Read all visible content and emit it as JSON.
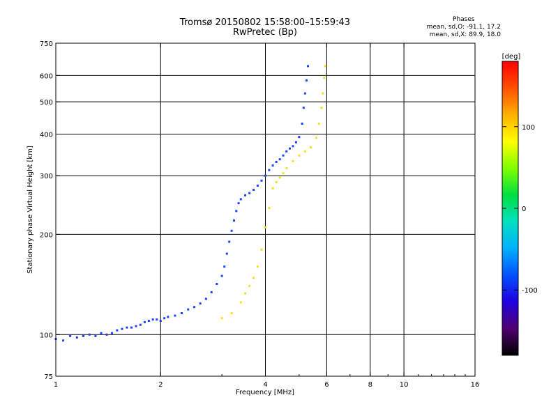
{
  "header": {
    "title": "Tromsø 20150802 15:58:00–15:59:43",
    "subtitle": "RwPretec (Bp)",
    "stats_title": "Phases",
    "stats_o": "mean, sd,O: -91.1, 17.2",
    "stats_x": "mean, sd,X:  89.9, 18.0"
  },
  "chart_data": {
    "type": "scatter",
    "title": "Tromsø 20150802 15:58:00–15:59:43",
    "subtitle": "RwPretec (Bp)",
    "xlabel": "Frequency [MHz]",
    "ylabel": "Stationary phase Virtual Height [km]",
    "xscale": "log",
    "yscale": "log",
    "xlim": [
      1,
      16
    ],
    "ylim": [
      75,
      750
    ],
    "xticks": [
      1,
      2,
      4,
      6,
      8,
      10,
      16
    ],
    "xtick_labels": [
      "1",
      "2",
      "4",
      "6",
      "8",
      "10",
      "16"
    ],
    "xgrid": [
      1,
      2,
      4,
      6,
      8,
      10
    ],
    "yticks": [
      75,
      100,
      200,
      300,
      400,
      500,
      600,
      750
    ],
    "ytick_labels": [
      "75",
      "100",
      "200",
      "300",
      "400",
      "500",
      "600",
      "750"
    ],
    "grid": true,
    "colorbar": {
      "label": "[deg]",
      "range": [
        -180,
        180
      ],
      "ticks": [
        -100,
        0,
        100
      ],
      "tick_labels": [
        "-100",
        "0",
        "100"
      ]
    },
    "series": [
      {
        "mode": "O",
        "phase_color": "#1e40ff",
        "points": [
          [
            1.0,
            97
          ],
          [
            1.05,
            96
          ],
          [
            1.1,
            99
          ],
          [
            1.15,
            98
          ],
          [
            1.2,
            99
          ],
          [
            1.25,
            100
          ],
          [
            1.3,
            99
          ],
          [
            1.35,
            101
          ],
          [
            1.4,
            100
          ],
          [
            1.45,
            101
          ],
          [
            1.5,
            103
          ],
          [
            1.55,
            104
          ],
          [
            1.6,
            105
          ],
          [
            1.65,
            105
          ],
          [
            1.7,
            106
          ],
          [
            1.75,
            107
          ],
          [
            1.8,
            109
          ],
          [
            1.85,
            110
          ],
          [
            1.9,
            111
          ],
          [
            1.95,
            111
          ],
          [
            2.0,
            110
          ],
          [
            2.05,
            112
          ],
          [
            2.1,
            113
          ],
          [
            2.2,
            114
          ],
          [
            2.3,
            116
          ],
          [
            2.4,
            119
          ],
          [
            2.5,
            121
          ],
          [
            2.6,
            124
          ],
          [
            2.7,
            128
          ],
          [
            2.8,
            134
          ],
          [
            2.9,
            142
          ],
          [
            3.0,
            150
          ],
          [
            3.05,
            160
          ],
          [
            3.1,
            175
          ],
          [
            3.15,
            190
          ],
          [
            3.2,
            205
          ],
          [
            3.25,
            220
          ],
          [
            3.3,
            235
          ],
          [
            3.35,
            248
          ],
          [
            3.4,
            255
          ],
          [
            3.5,
            262
          ],
          [
            3.6,
            266
          ],
          [
            3.7,
            272
          ],
          [
            3.8,
            280
          ],
          [
            3.9,
            290
          ],
          [
            4.0,
            300
          ],
          [
            4.1,
            312
          ],
          [
            4.2,
            322
          ],
          [
            4.3,
            330
          ],
          [
            4.4,
            336
          ],
          [
            4.5,
            345
          ],
          [
            4.6,
            355
          ],
          [
            4.7,
            362
          ],
          [
            4.8,
            368
          ],
          [
            4.9,
            378
          ],
          [
            5.0,
            392
          ],
          [
            5.1,
            430
          ],
          [
            5.15,
            480
          ],
          [
            5.2,
            530
          ],
          [
            5.25,
            580
          ],
          [
            5.3,
            640
          ]
        ]
      },
      {
        "mode": "X",
        "phase_color": "#f0e020",
        "points": [
          [
            3.0,
            112
          ],
          [
            3.2,
            116
          ],
          [
            3.4,
            125
          ],
          [
            3.5,
            133
          ],
          [
            3.6,
            140
          ],
          [
            3.7,
            148
          ],
          [
            3.8,
            160
          ],
          [
            3.9,
            180
          ],
          [
            4.0,
            210
          ],
          [
            4.1,
            240
          ],
          [
            4.2,
            275
          ],
          [
            4.3,
            287
          ],
          [
            4.4,
            296
          ],
          [
            4.5,
            305
          ],
          [
            4.6,
            316
          ],
          [
            4.8,
            332
          ],
          [
            5.0,
            345
          ],
          [
            5.2,
            355
          ],
          [
            5.4,
            365
          ],
          [
            5.6,
            390
          ],
          [
            5.7,
            430
          ],
          [
            5.8,
            480
          ],
          [
            5.85,
            530
          ],
          [
            5.9,
            590
          ],
          [
            5.95,
            640
          ]
        ]
      }
    ]
  },
  "colorbar_colors": [
    "#000000",
    "#500070",
    "#2000e0",
    "#0050ff",
    "#00b0ff",
    "#00e0c0",
    "#00e040",
    "#80ff00",
    "#ffff00",
    "#ffb000",
    "#ff5000",
    "#ff0000"
  ]
}
